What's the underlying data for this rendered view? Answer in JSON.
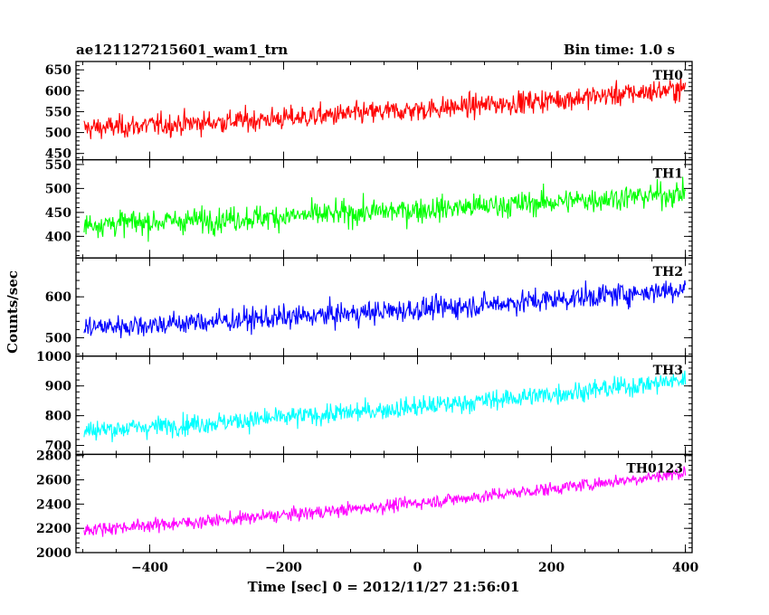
{
  "chart_data": {
    "type": "line",
    "title": "ae121127215601_wam1_trn",
    "subtitle": "Bin time: 1.0 s",
    "xlabel": "Time [sec] 0 = 2012/11/27 21:56:01",
    "ylabel": "Counts/sec",
    "xlim": [
      -510,
      410
    ],
    "x_ticks": [
      -400,
      -200,
      0,
      200,
      400
    ],
    "grid": false,
    "data_start": -498,
    "data_end": 400,
    "bin_time": 1.0,
    "panels": [
      {
        "name": "TH0",
        "color": "#ff0000",
        "ylim": [
          435,
          670
        ],
        "y_ticks": [
          450,
          500,
          550,
          600,
          650
        ],
        "trend_start": 510,
        "trend_end": 605,
        "noise": 24
      },
      {
        "name": "TH1",
        "color": "#00ff00",
        "ylim": [
          355,
          560
        ],
        "y_ticks": [
          400,
          450,
          500,
          550
        ],
        "trend_start": 425,
        "trend_end": 490,
        "noise": 23
      },
      {
        "name": "TH2",
        "color": "#0000ff",
        "ylim": [
          455,
          695
        ],
        "y_ticks": [
          500,
          600
        ],
        "trend_start": 525,
        "trend_end": 620,
        "noise": 25
      },
      {
        "name": "TH3",
        "color": "#00ffff",
        "ylim": [
          670,
          1000
        ],
        "y_ticks": [
          700,
          800,
          900,
          1000
        ],
        "trend_start": 750,
        "trend_end": 920,
        "noise": 30
      },
      {
        "name": "TH0123",
        "color": "#ff00ff",
        "ylim": [
          2000,
          2810
        ],
        "y_ticks": [
          2000,
          2200,
          2400,
          2600,
          2800
        ],
        "trend_start": 2190,
        "trend_end": 2660,
        "noise": 48
      }
    ]
  }
}
